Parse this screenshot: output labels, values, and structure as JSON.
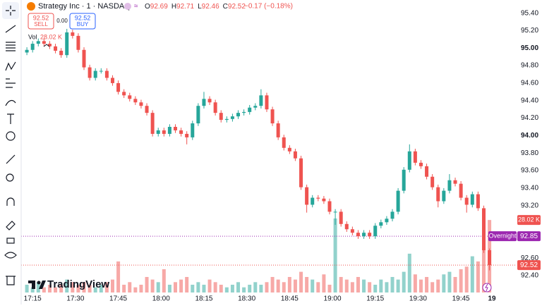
{
  "header": {
    "symbol": "Strategy Inc · 1 · NASDAQ",
    "ohlc": [
      {
        "key": "O",
        "value": "92.69"
      },
      {
        "key": "H",
        "value": "92.71"
      },
      {
        "key": "L",
        "value": "92.46"
      },
      {
        "key": "C",
        "value": "92.52"
      }
    ],
    "change": "−0.17 (−0.18%)",
    "sell_price": "92.52",
    "sell": "SELL",
    "spread": "0.00",
    "buy_price": "92.52",
    "buy": "BUY",
    "volume_label": "Vol",
    "volume": "28.02 K"
  },
  "branding": "TradingView",
  "chart_data": {
    "type": "candlestick",
    "x": [
      "17:13",
      "17:15",
      "17:17",
      "17:19",
      "17:21",
      "17:23",
      "17:25",
      "17:27",
      "17:29",
      "17:31",
      "17:33",
      "17:35",
      "17:37",
      "17:39",
      "17:41",
      "17:43",
      "17:45",
      "17:47",
      "17:49",
      "17:51",
      "17:53",
      "17:55",
      "17:57",
      "17:59",
      "18:01",
      "18:03",
      "18:05",
      "18:07",
      "18:09",
      "18:11",
      "18:13",
      "18:15",
      "18:17",
      "18:19",
      "18:21",
      "18:23",
      "18:25",
      "18:27",
      "18:29",
      "18:31",
      "18:33",
      "18:35",
      "18:37",
      "18:39",
      "18:41",
      "18:43",
      "18:45",
      "18:47",
      "18:49",
      "18:51",
      "18:53",
      "18:55",
      "18:57",
      "18:59",
      "19:01",
      "19:03",
      "19:05",
      "19:07",
      "19:09",
      "19:11",
      "19:13",
      "19:15",
      "19:17",
      "19:19",
      "19:21",
      "19:23",
      "19:25",
      "19:27",
      "19:29",
      "19:31",
      "19:33",
      "19:35",
      "19:37",
      "19:39",
      "19:41",
      "19:43",
      "19:45",
      "19:47",
      "19:49",
      "19:51",
      "19:53",
      "19:55"
    ],
    "open": [
      94.95,
      94.98,
      95.05,
      95.08,
      95.05,
      95.02,
      94.97,
      94.92,
      95.18,
      95.14,
      94.98,
      94.78,
      94.66,
      94.74,
      94.74,
      94.66,
      94.6,
      94.5,
      94.46,
      94.42,
      94.38,
      94.34,
      94.26,
      94.02,
      94.06,
      94.02,
      94.1,
      94.06,
      94.02,
      93.98,
      94.14,
      94.34,
      94.42,
      94.38,
      94.26,
      94.18,
      94.19,
      94.22,
      94.26,
      94.27,
      94.32,
      94.34,
      94.46,
      94.3,
      94.14,
      93.98,
      93.86,
      93.82,
      93.74,
      93.41,
      93.21,
      93.29,
      93.28,
      93.25,
      93.13,
      93.13,
      92.99,
      92.93,
      92.89,
      92.85,
      92.89,
      92.85,
      92.97,
      93.01,
      93.05,
      93.13,
      93.37,
      93.61,
      93.82,
      93.69,
      93.65,
      93.53,
      93.41,
      93.25,
      93.37,
      93.49,
      93.45,
      93.29,
      93.21,
      93.33,
      93.17,
      92.69
    ],
    "high": [
      95.01,
      95.08,
      95.11,
      95.11,
      95.08,
      95.05,
      95.0,
      95.22,
      95.21,
      95.17,
      95.01,
      94.81,
      94.77,
      94.77,
      94.77,
      94.69,
      94.63,
      94.53,
      94.49,
      94.45,
      94.41,
      94.37,
      94.29,
      94.09,
      94.09,
      94.13,
      94.13,
      94.09,
      94.05,
      94.17,
      94.37,
      94.5,
      94.45,
      94.41,
      94.29,
      94.22,
      94.25,
      94.29,
      94.3,
      94.35,
      94.37,
      94.53,
      94.49,
      94.33,
      94.17,
      94.01,
      93.89,
      93.85,
      93.77,
      93.44,
      93.32,
      93.32,
      93.31,
      93.28,
      93.16,
      93.16,
      93.02,
      92.96,
      92.92,
      92.92,
      92.92,
      93.0,
      93.04,
      93.08,
      93.16,
      93.4,
      93.64,
      93.9,
      93.85,
      93.72,
      93.68,
      93.56,
      93.44,
      93.4,
      93.56,
      93.52,
      93.48,
      93.32,
      93.36,
      93.36,
      93.2,
      92.71
    ],
    "low": [
      94.92,
      94.95,
      95.02,
      95.02,
      94.99,
      94.94,
      94.89,
      94.89,
      95.11,
      94.95,
      94.75,
      94.63,
      94.63,
      94.71,
      94.63,
      94.57,
      94.47,
      94.43,
      94.39,
      94.35,
      94.31,
      94.23,
      93.99,
      93.99,
      93.99,
      93.99,
      94.03,
      93.99,
      93.9,
      93.95,
      94.11,
      94.31,
      94.35,
      94.23,
      94.15,
      94.15,
      94.16,
      94.19,
      94.23,
      94.24,
      94.29,
      94.31,
      94.27,
      94.11,
      93.95,
      93.83,
      93.79,
      93.71,
      93.38,
      93.12,
      93.18,
      93.25,
      93.22,
      93.1,
      92.98,
      92.96,
      92.9,
      92.86,
      92.82,
      92.82,
      92.82,
      92.82,
      92.94,
      92.98,
      93.02,
      93.1,
      93.34,
      93.58,
      93.66,
      93.62,
      93.5,
      93.38,
      93.18,
      93.22,
      93.34,
      93.42,
      93.26,
      93.12,
      93.18,
      93.14,
      92.66,
      92.46
    ],
    "close": [
      94.98,
      95.05,
      95.08,
      95.05,
      95.02,
      94.97,
      94.92,
      95.18,
      95.14,
      94.98,
      94.78,
      94.66,
      94.74,
      94.74,
      94.66,
      94.6,
      94.5,
      94.46,
      94.42,
      94.38,
      94.34,
      94.26,
      94.02,
      94.06,
      94.02,
      94.1,
      94.06,
      94.02,
      93.98,
      94.14,
      94.34,
      94.42,
      94.38,
      94.26,
      94.18,
      94.19,
      94.22,
      94.26,
      94.27,
      94.32,
      94.34,
      94.46,
      94.3,
      94.14,
      93.98,
      93.86,
      93.82,
      93.74,
      93.41,
      93.21,
      93.29,
      93.28,
      93.25,
      93.13,
      93.13,
      92.99,
      92.93,
      92.89,
      92.85,
      92.89,
      92.85,
      92.97,
      93.01,
      93.05,
      93.13,
      93.37,
      93.61,
      93.82,
      93.69,
      93.65,
      93.53,
      93.41,
      93.25,
      93.37,
      93.49,
      93.45,
      93.29,
      93.21,
      93.33,
      93.17,
      92.69,
      92.52
    ],
    "volume": [
      3000,
      2000,
      4000,
      2000,
      3000,
      2000,
      3000,
      5000,
      4000,
      3000,
      4000,
      3000,
      2000,
      3000,
      4000,
      5000,
      12000,
      3000,
      4000,
      2000,
      3000,
      6000,
      5000,
      4000,
      9000,
      3000,
      4000,
      5000,
      6000,
      3000,
      4000,
      3000,
      5000,
      4000,
      3000,
      2000,
      3000,
      4000,
      2000,
      3000,
      4000,
      3000,
      4000,
      6000,
      5000,
      4000,
      6000,
      5000,
      8000,
      6000,
      5000,
      4000,
      7000,
      3000,
      28600,
      6000,
      5000,
      4000,
      6000,
      5000,
      4000,
      3000,
      5000,
      4000,
      6000,
      5000,
      8000,
      15000,
      7000,
      5000,
      6000,
      4000,
      5000,
      7000,
      8000,
      6000,
      9000,
      10000,
      14000,
      12000,
      18000,
      28020
    ],
    "last_volume_label": "28.02 K",
    "up_color": "#26a69a",
    "down_color": "#ef5350",
    "xlim": [
      "17:11",
      "20:04"
    ],
    "xticks": [
      "17:15",
      "17:30",
      "17:45",
      "18:00",
      "18:15",
      "18:30",
      "18:45",
      "19:00",
      "19:15",
      "19:30",
      "19:45"
    ],
    "date_label": "19",
    "ylim": [
      92.07,
      95.55
    ],
    "yticks": [
      {
        "value": 95.4,
        "label": "95.40"
      },
      {
        "value": 95.2,
        "label": "95.20"
      },
      {
        "value": 95,
        "label": "95.00"
      },
      {
        "value": 94.8,
        "label": "94.80"
      },
      {
        "value": 94.6,
        "label": "94.60"
      },
      {
        "value": 94.4,
        "label": "94.40"
      },
      {
        "value": 94.2,
        "label": "94.20"
      },
      {
        "value": 94,
        "label": "94.00"
      },
      {
        "value": 93.8,
        "label": "93.80"
      },
      {
        "value": 93.6,
        "label": "93.60"
      },
      {
        "value": 93.4,
        "label": "93.40"
      },
      {
        "value": 93.2,
        "label": "93.20"
      },
      {
        "value": 92.6,
        "label": "92.60"
      },
      {
        "value": 92.4,
        "label": "92.40"
      }
    ],
    "markers": [
      {
        "name": "Overnight",
        "value": 92.85,
        "label": "92.85",
        "color": "#9c27b0"
      },
      {
        "value": 92.52,
        "label": "92.52",
        "color": "#ef5350"
      }
    ]
  }
}
